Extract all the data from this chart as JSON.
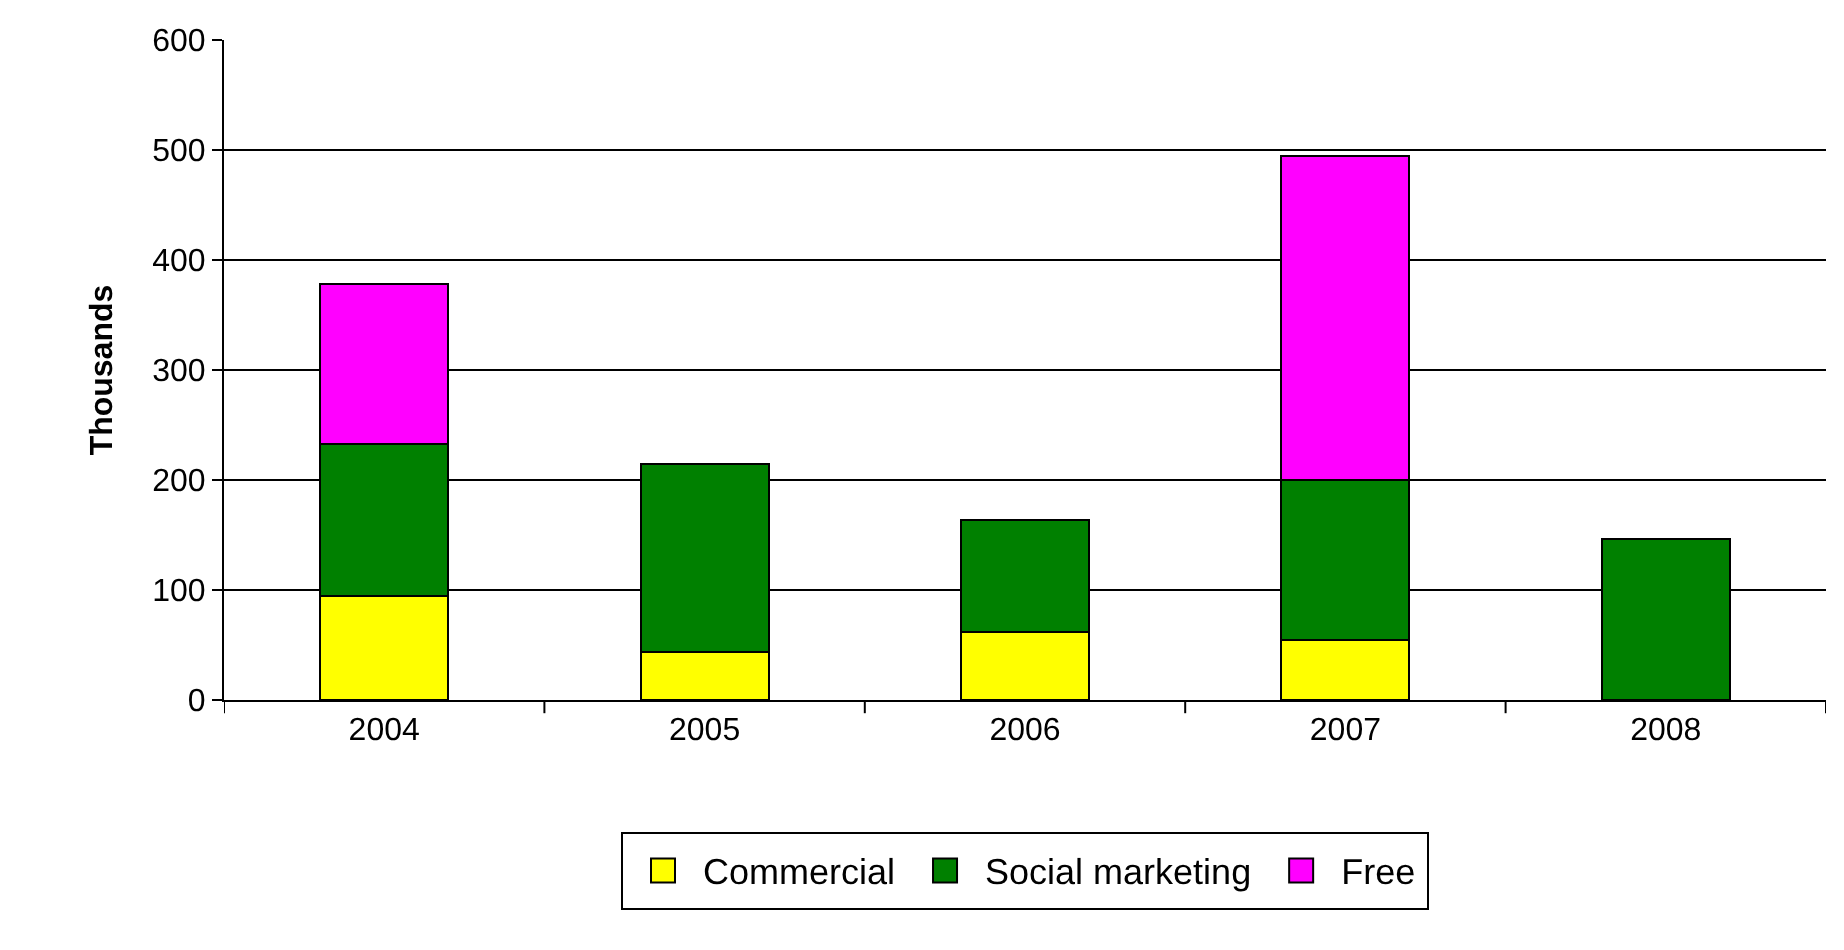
{
  "chart_data": {
    "type": "bar",
    "stacked": true,
    "ylabel": "Thousands",
    "categories": [
      "2004",
      "2005",
      "2006",
      "2007",
      "2008"
    ],
    "series": [
      {
        "name": "Commercial",
        "color": "#ffff00",
        "values": [
          95,
          44,
          62,
          55,
          null
        ]
      },
      {
        "name": "Social marketing",
        "color": "#008000",
        "values": [
          138,
          171,
          102,
          145,
          146
        ]
      },
      {
        "name": "Free",
        "color": "#ff00ff",
        "values": [
          145,
          null,
          null,
          295,
          null
        ]
      }
    ],
    "ylim": [
      0,
      600
    ],
    "yticks": [
      0,
      100,
      200,
      300,
      400,
      500,
      600
    ],
    "grid": "y",
    "legend": "bottom"
  }
}
